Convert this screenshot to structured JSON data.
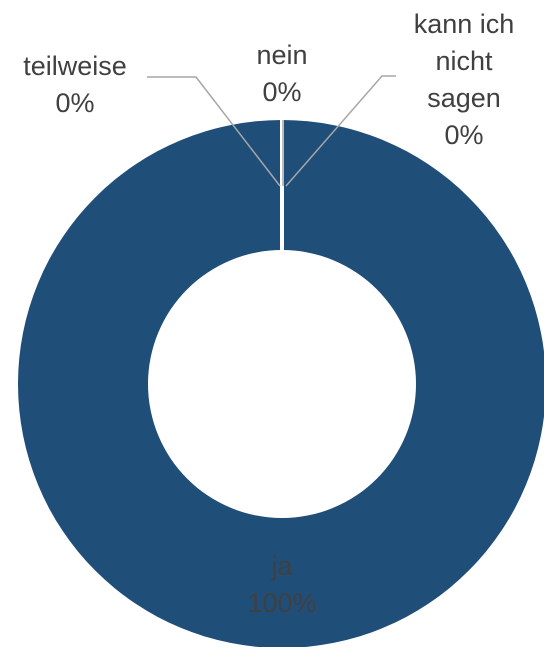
{
  "chart_data": {
    "type": "pie",
    "variant": "donut",
    "categories": [
      "ja",
      "nein",
      "kann ich nicht sagen",
      "teilweise"
    ],
    "values": [
      100,
      0,
      0,
      0
    ],
    "value_labels": [
      "100%",
      "0%",
      "0%",
      "0%"
    ],
    "label_lines": [
      [
        "ja"
      ],
      [
        "nein"
      ],
      [
        "kann ich",
        "nicht",
        "sagen"
      ],
      [
        "teilweise"
      ]
    ],
    "title": "",
    "legend": "none",
    "colors": {
      "ja": "#1f4e79",
      "nein": "#2e75b6",
      "kann ich nicht sagen": "#9dc3e6",
      "teilweise": "#5b9bd5",
      "separator": "#ffffff",
      "leader_line": "#a6a6a6",
      "label_text": "#404040",
      "inside_label_text": "#ffffff"
    }
  }
}
